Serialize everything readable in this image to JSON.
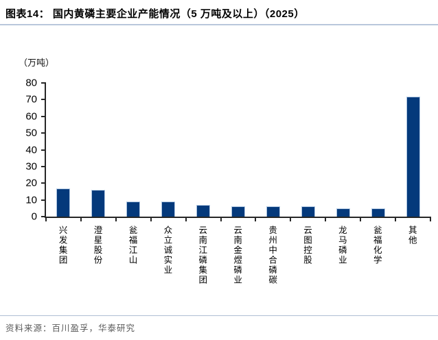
{
  "header": {
    "title": "图表14：  国内黄磷主要企业产能情况（5 万吨及以上）（2025）"
  },
  "chart_data": {
    "type": "bar",
    "title": "国内黄磷主要企业产能情况（5万吨及以上）（2025）",
    "unit_label": "（万吨）",
    "categories": [
      "兴发集团",
      "澄星股份",
      "瓮福江山",
      "众立诚实业",
      "云南江磷集团",
      "云南金煜磷业",
      "贵州中合磷碳",
      "云图控股",
      "龙马磷业",
      "瓮福化学",
      "其他"
    ],
    "values": [
      17,
      16,
      9,
      9,
      7,
      6,
      6,
      6,
      5,
      5,
      72
    ],
    "ylabel": "",
    "xlabel": "",
    "ylim": [
      0,
      80
    ],
    "ytick_step": 10,
    "grid": false,
    "legend": "none",
    "bar_color": "#04397b",
    "bar_edge_color": "#afc7e2",
    "axis_color": "#262626"
  },
  "footer": {
    "source": "资料来源：百川盈孚，华泰研究"
  }
}
